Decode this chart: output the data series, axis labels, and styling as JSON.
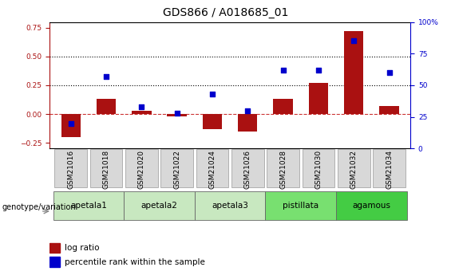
{
  "title": "GDS866 / A018685_01",
  "samples": [
    "GSM21016",
    "GSM21018",
    "GSM21020",
    "GSM21022",
    "GSM21024",
    "GSM21026",
    "GSM21028",
    "GSM21030",
    "GSM21032",
    "GSM21034"
  ],
  "log_ratio": [
    -0.2,
    0.13,
    0.03,
    -0.02,
    -0.13,
    -0.15,
    0.13,
    0.27,
    0.72,
    0.07
  ],
  "percentile_rank": [
    20,
    57,
    33,
    28,
    43,
    30,
    62,
    62,
    85,
    60
  ],
  "groups": [
    {
      "label": "apetala1",
      "start": 0,
      "end": 2,
      "color": "#c8e8c0"
    },
    {
      "label": "apetala2",
      "start": 2,
      "end": 4,
      "color": "#c8e8c0"
    },
    {
      "label": "apetala3",
      "start": 4,
      "end": 6,
      "color": "#c8e8c0"
    },
    {
      "label": "pistillata",
      "start": 6,
      "end": 8,
      "color": "#78e070"
    },
    {
      "label": "agamous",
      "start": 8,
      "end": 10,
      "color": "#44cc44"
    }
  ],
  "ylim_left": [
    -0.3,
    0.8
  ],
  "ylim_right": [
    0,
    100
  ],
  "yticks_left": [
    -0.25,
    0.0,
    0.25,
    0.5,
    0.75
  ],
  "yticks_right": [
    0,
    25,
    50,
    75,
    100
  ],
  "hlines": [
    0.5,
    0.25
  ],
  "bar_color": "#aa1111",
  "dot_color": "#0000cc",
  "zero_line_color": "#cc3333",
  "background_color": "#ffffff",
  "sample_box_color": "#d8d8d8",
  "sample_box_edge": "#999999",
  "legend_bar_label": "log ratio",
  "legend_dot_label": "percentile rank within the sample",
  "genotype_label": "genotype/variation",
  "title_fontsize": 10,
  "tick_fontsize": 6.5,
  "legend_fontsize": 7.5
}
